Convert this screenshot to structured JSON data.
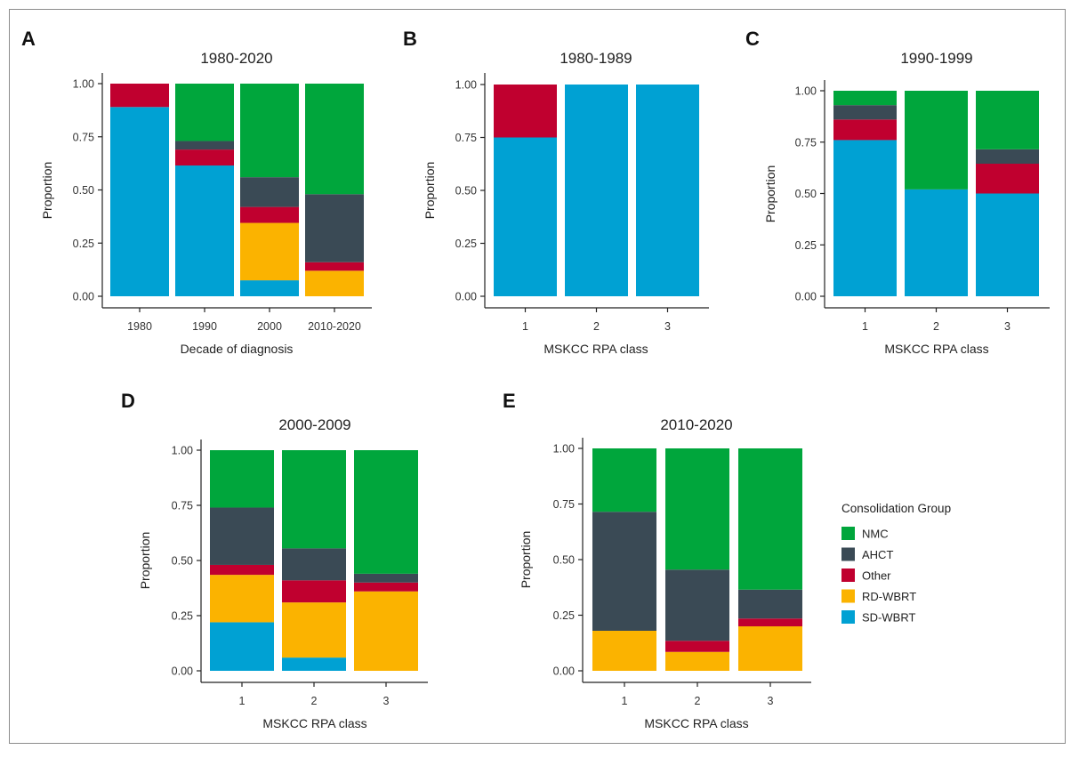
{
  "colors": {
    "NMC": "#00a63c",
    "AHCT": "#3a4a55",
    "Other": "#c0002f",
    "RD-WBRT": "#fbb300",
    "SD-WBRT": "#00a1d3"
  },
  "legend": {
    "title": "Consolidation Group",
    "entries": [
      "NMC",
      "AHCT",
      "Other",
      "RD-WBRT",
      "SD-WBRT"
    ]
  },
  "chart_data": [
    {
      "panel": "A",
      "type": "bar",
      "stacked": true,
      "title": "1980-2020",
      "xlabel": "Decade of diagnosis",
      "ylabel": "Proportion",
      "ylim": [
        0,
        1
      ],
      "yticks": [
        "0.00",
        "0.25",
        "0.50",
        "0.75",
        "1.00"
      ],
      "categories": [
        "1980",
        "1990",
        "2000",
        "2010-2020"
      ],
      "series": [
        {
          "name": "SD-WBRT",
          "values": [
            0.89,
            0.615,
            0.075,
            0.0
          ]
        },
        {
          "name": "RD-WBRT",
          "values": [
            0.0,
            0.0,
            0.27,
            0.12
          ]
        },
        {
          "name": "Other",
          "values": [
            0.11,
            0.075,
            0.075,
            0.04
          ]
        },
        {
          "name": "AHCT",
          "values": [
            0.0,
            0.04,
            0.14,
            0.32
          ]
        },
        {
          "name": "NMC",
          "values": [
            0.0,
            0.27,
            0.44,
            0.52
          ]
        }
      ]
    },
    {
      "panel": "B",
      "type": "bar",
      "stacked": true,
      "title": "1980-1989",
      "xlabel": "MSKCC RPA class",
      "ylabel": "Proportion",
      "ylim": [
        0,
        1
      ],
      "yticks": [
        "0.00",
        "0.25",
        "0.50",
        "0.75",
        "1.00"
      ],
      "categories": [
        "1",
        "2",
        "3"
      ],
      "series": [
        {
          "name": "SD-WBRT",
          "values": [
            0.75,
            1.0,
            1.0
          ]
        },
        {
          "name": "RD-WBRT",
          "values": [
            0.0,
            0.0,
            0.0
          ]
        },
        {
          "name": "Other",
          "values": [
            0.25,
            0.0,
            0.0
          ]
        },
        {
          "name": "AHCT",
          "values": [
            0.0,
            0.0,
            0.0
          ]
        },
        {
          "name": "NMC",
          "values": [
            0.0,
            0.0,
            0.0
          ]
        }
      ]
    },
    {
      "panel": "C",
      "type": "bar",
      "stacked": true,
      "title": "1990-1999",
      "xlabel": "MSKCC RPA class",
      "ylabel": "Proportion",
      "ylim": [
        0,
        1
      ],
      "yticks": [
        "0.00",
        "0.25",
        "0.50",
        "0.75",
        "1.00"
      ],
      "categories": [
        "1",
        "2",
        "3"
      ],
      "series": [
        {
          "name": "SD-WBRT",
          "values": [
            0.76,
            0.52,
            0.5
          ]
        },
        {
          "name": "RD-WBRT",
          "values": [
            0.0,
            0.0,
            0.0
          ]
        },
        {
          "name": "Other",
          "values": [
            0.1,
            0.0,
            0.145
          ]
        },
        {
          "name": "AHCT",
          "values": [
            0.07,
            0.0,
            0.07
          ]
        },
        {
          "name": "NMC",
          "values": [
            0.07,
            0.48,
            0.285
          ]
        }
      ]
    },
    {
      "panel": "D",
      "type": "bar",
      "stacked": true,
      "title": "2000-2009",
      "xlabel": "MSKCC RPA class",
      "ylabel": "Proportion",
      "ylim": [
        0,
        1
      ],
      "yticks": [
        "0.00",
        "0.25",
        "0.50",
        "0.75",
        "1.00"
      ],
      "categories": [
        "1",
        "2",
        "3"
      ],
      "series": [
        {
          "name": "SD-WBRT",
          "values": [
            0.22,
            0.06,
            0.0
          ]
        },
        {
          "name": "RD-WBRT",
          "values": [
            0.215,
            0.25,
            0.36
          ]
        },
        {
          "name": "Other",
          "values": [
            0.045,
            0.1,
            0.04
          ]
        },
        {
          "name": "AHCT",
          "values": [
            0.26,
            0.145,
            0.04
          ]
        },
        {
          "name": "NMC",
          "values": [
            0.26,
            0.445,
            0.56
          ]
        }
      ]
    },
    {
      "panel": "E",
      "type": "bar",
      "stacked": true,
      "title": "2010-2020",
      "xlabel": "MSKCC RPA class",
      "ylabel": "Proportion",
      "ylim": [
        0,
        1
      ],
      "yticks": [
        "0.00",
        "0.25",
        "0.50",
        "0.75",
        "1.00"
      ],
      "categories": [
        "1",
        "2",
        "3"
      ],
      "series": [
        {
          "name": "SD-WBRT",
          "values": [
            0.0,
            0.0,
            0.0
          ]
        },
        {
          "name": "RD-WBRT",
          "values": [
            0.18,
            0.085,
            0.2
          ]
        },
        {
          "name": "Other",
          "values": [
            0.0,
            0.05,
            0.035
          ]
        },
        {
          "name": "AHCT",
          "values": [
            0.535,
            0.32,
            0.13
          ]
        },
        {
          "name": "NMC",
          "values": [
            0.285,
            0.545,
            0.635
          ]
        }
      ]
    }
  ]
}
